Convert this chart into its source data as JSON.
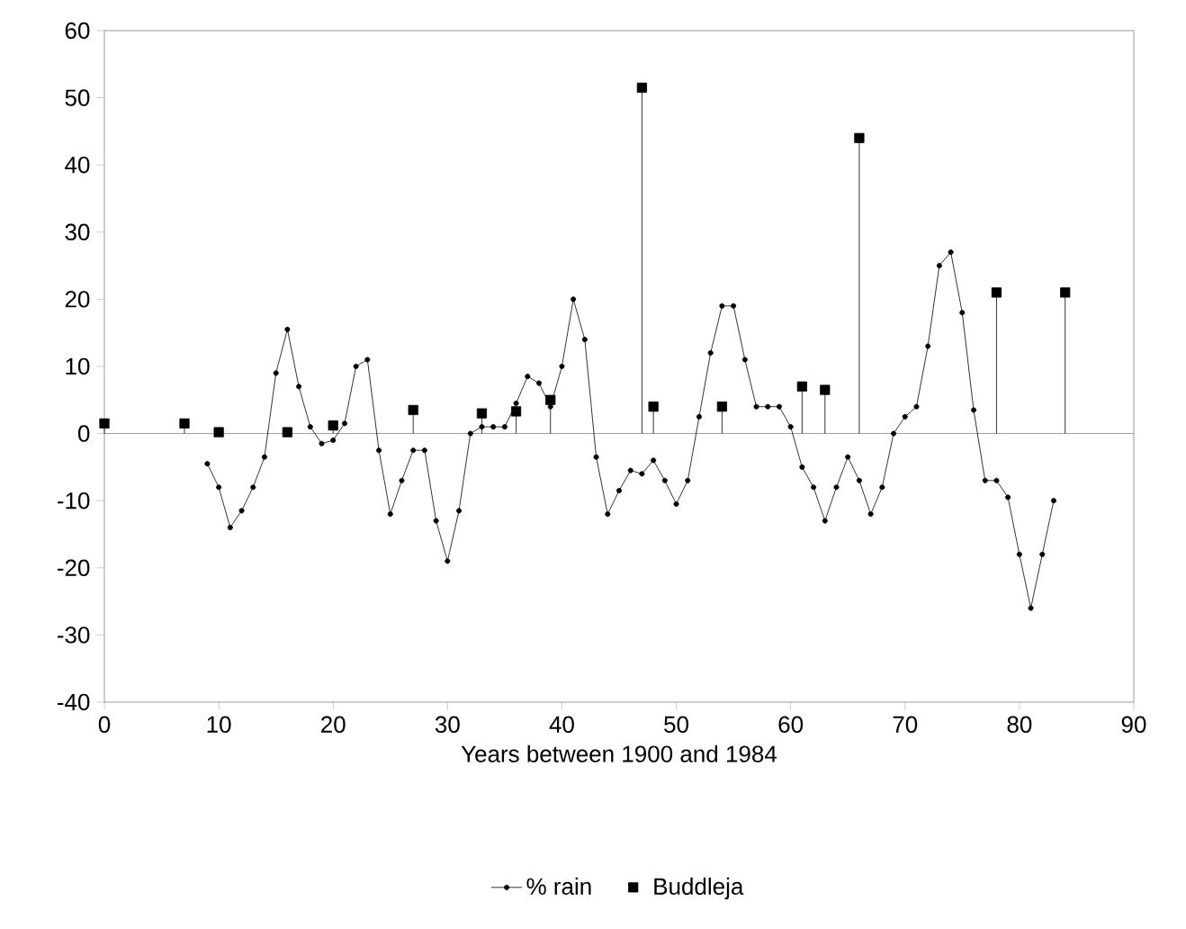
{
  "chart_data": {
    "type": "line",
    "xlabel": "Years between 1900 and 1984",
    "xlim": [
      0,
      90
    ],
    "ylim": [
      -40,
      60
    ],
    "xticks": [
      0,
      10,
      20,
      30,
      40,
      50,
      60,
      70,
      80,
      90
    ],
    "yticks": [
      -40,
      -30,
      -20,
      -10,
      0,
      10,
      20,
      30,
      40,
      50,
      60
    ],
    "legend": "bottom",
    "grid": false,
    "ref_lines": [
      {
        "axis": "y",
        "value": 0,
        "color": "#808080"
      }
    ],
    "series": [
      {
        "name": "% rain",
        "marker": "circle",
        "color": "#000000",
        "x": [
          9,
          10,
          11,
          12,
          13,
          14,
          15,
          16,
          17,
          18,
          19,
          20,
          21,
          22,
          23,
          24,
          25,
          26,
          27,
          28,
          29,
          30,
          31,
          32,
          33,
          34,
          35,
          36,
          37,
          38,
          39,
          40,
          41,
          42,
          43,
          44,
          45,
          46,
          47,
          48,
          49,
          50,
          51,
          52,
          53,
          54,
          55,
          56,
          57,
          58,
          59,
          60,
          61,
          62,
          63,
          64,
          65,
          66,
          67,
          68,
          69,
          70,
          71,
          72,
          73,
          74,
          75,
          76,
          77,
          78,
          79,
          80,
          81,
          82,
          83
        ],
        "values": [
          -4.5,
          -8,
          -14,
          -11.5,
          -8,
          -3.5,
          9,
          15.5,
          7,
          1,
          -1.5,
          -1,
          1.5,
          10,
          11,
          -2.5,
          -12,
          -7,
          -2.5,
          -2.5,
          -13,
          -19,
          -11.5,
          0,
          1,
          1,
          1,
          4.5,
          8.5,
          7.5,
          4,
          10,
          20,
          14,
          -3.5,
          -12,
          -8.5,
          -5.5,
          -6,
          -4,
          -7,
          -10.5,
          -7,
          2.5,
          12,
          19,
          19,
          11,
          4,
          4,
          4,
          1,
          -5,
          -8,
          -13,
          -8,
          -3.5,
          -7,
          -12,
          -8,
          0,
          2.5,
          4,
          13,
          25,
          27,
          18,
          3.5,
          -7,
          -7,
          -9.5,
          -18,
          -26,
          -18,
          -10
        ]
      },
      {
        "name": "Buddleja",
        "type": "lollipop",
        "marker": "square",
        "color": "#000000",
        "x": [
          0,
          7,
          10,
          16,
          20,
          27,
          33,
          36,
          39,
          47,
          48,
          54,
          61,
          63,
          66,
          78,
          84
        ],
        "values": [
          1.5,
          1.5,
          0.2,
          0.2,
          1.2,
          3.5,
          3,
          3.3,
          5,
          51.5,
          4,
          4,
          7,
          6.5,
          44,
          21,
          21
        ]
      }
    ]
  }
}
